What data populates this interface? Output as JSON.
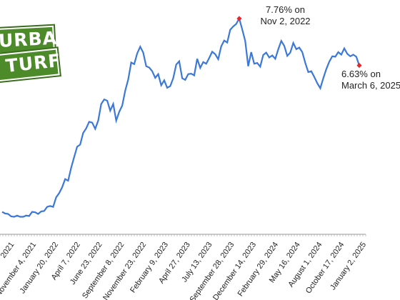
{
  "logo": {
    "line1": "URBAN",
    "line2": "TURF"
  },
  "annotations": {
    "peak": {
      "line1": "7.76% on",
      "line2": "Nov 2, 2022"
    },
    "last": {
      "line1": "6.63% on",
      "line2": "March 6, 2025"
    }
  },
  "colors": {
    "line": "#3b78d8",
    "marker": "#e8262b",
    "axis": "#9a9a9a",
    "logo_green": "#4d8a2a"
  },
  "chart_data": {
    "type": "line",
    "title": "",
    "xlabel": "",
    "ylabel": "",
    "ylim": [
      2.8,
      8.0
    ],
    "grid": false,
    "x_tick_labels": [
      "2021",
      "November 4, 2021",
      "January 20, 2022",
      "April 7, 2022",
      "June 23, 2022",
      "September 8, 2022",
      "November 23, 2022",
      "February 9, 2023",
      "April 27, 2023",
      "July 13, 2023",
      "September 28, 2023",
      "December 14, 2023",
      "February 29, 2024",
      "May 16, 2024",
      "August 1, 2024",
      "October 17, 2024",
      "January 2, 2025"
    ],
    "series": [
      {
        "values": [
          3.1,
          3.06,
          3.05,
          2.99,
          2.98,
          3.01,
          2.98,
          2.98,
          3.01,
          3.0,
          3.1,
          3.09,
          3.05,
          3.11,
          3.12,
          3.22,
          3.24,
          3.22,
          3.45,
          3.55,
          3.69,
          3.89,
          3.85,
          4.16,
          4.42,
          4.67,
          4.72,
          5.0,
          5.11,
          5.27,
          5.25,
          5.1,
          5.3,
          5.7,
          5.81,
          5.78,
          5.54,
          5.7,
          5.3,
          5.51,
          5.66,
          6.02,
          6.29,
          6.7,
          6.66,
          6.92,
          7.08,
          6.94,
          6.61,
          6.58,
          6.49,
          6.33,
          6.42,
          6.15,
          6.27,
          6.09,
          6.13,
          6.32,
          6.65,
          6.73,
          6.32,
          6.28,
          6.42,
          6.43,
          6.39,
          6.79,
          6.57,
          6.71,
          6.67,
          6.81,
          6.96,
          6.9,
          6.78,
          7.09,
          7.23,
          7.18,
          7.49,
          7.57,
          7.63,
          7.76,
          7.5,
          7.22,
          6.61,
          6.95,
          6.67,
          6.69,
          6.6,
          6.88,
          6.94,
          6.82,
          6.87,
          6.79,
          7.02,
          7.22,
          7.1,
          6.86,
          6.94,
          7.17,
          7.02,
          7.06,
          6.95,
          6.69,
          6.47,
          6.49,
          6.35,
          6.2,
          6.08,
          6.32,
          6.54,
          6.72,
          6.85,
          6.84,
          6.95,
          6.89,
          7.04,
          6.91,
          6.85,
          6.89,
          6.84,
          6.63
        ]
      }
    ],
    "highlighted_points": [
      {
        "label": "Nov 2, 2022",
        "value": 7.76
      },
      {
        "label": "March 6, 2025",
        "value": 6.63
      }
    ]
  }
}
